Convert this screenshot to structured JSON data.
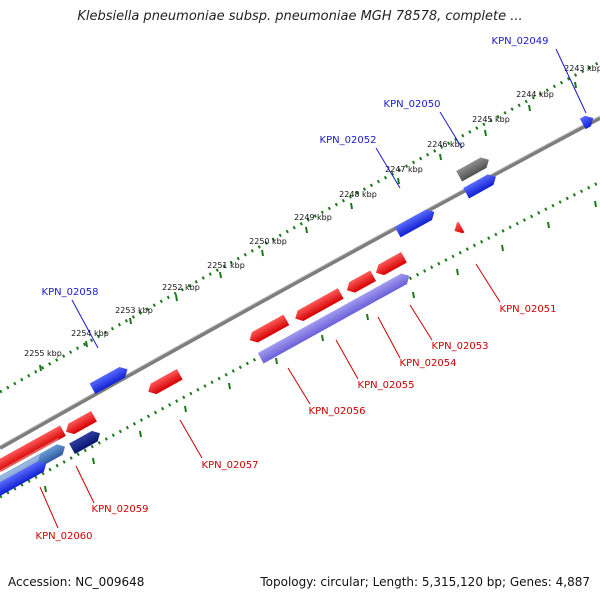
{
  "title": "Klebsiella pneumoniae subsp. pneumoniae MGH 78578, complete ...",
  "footer": {
    "accession": "Accession: NC_009648",
    "summary": "Topology: circular; Length: 5,315,120 bp; Genes: 4,887"
  },
  "ticks": [
    {
      "label": "2243 kbp"
    },
    {
      "label": "2244 kbp"
    },
    {
      "label": "2245 kbp"
    },
    {
      "label": "2246 kbp"
    },
    {
      "label": "2247 kbp"
    },
    {
      "label": "2248 kbp"
    },
    {
      "label": "2249 kbp"
    },
    {
      "label": "2250 kbp"
    },
    {
      "label": "2251 kbp"
    },
    {
      "label": "2252 kbp"
    },
    {
      "label": "2253 kbp"
    },
    {
      "label": "2254 kbp"
    },
    {
      "label": "2255 kbp"
    }
  ],
  "genes": [
    {
      "id": "KPN_02049",
      "strand": "forward"
    },
    {
      "id": "KPN_02050",
      "strand": "forward"
    },
    {
      "id": "KPN_02052",
      "strand": "forward"
    },
    {
      "id": "KPN_02058",
      "strand": "forward"
    },
    {
      "id": "KPN_02051",
      "strand": "reverse"
    },
    {
      "id": "KPN_02053",
      "strand": "reverse"
    },
    {
      "id": "KPN_02054",
      "strand": "reverse"
    },
    {
      "id": "KPN_02055",
      "strand": "reverse"
    },
    {
      "id": "KPN_02056",
      "strand": "reverse"
    },
    {
      "id": "KPN_02057",
      "strand": "reverse"
    },
    {
      "id": "KPN_02059",
      "strand": "reverse"
    },
    {
      "id": "KPN_02060",
      "strand": "reverse"
    }
  ],
  "colors": {
    "forward_gene": "#1f2fe0",
    "reverse_gene": "#ee1111",
    "forward_label": "#1a1acc",
    "reverse_label": "#cc0000",
    "tick": "#1c7a1c",
    "backbone": "#8a8a8a"
  }
}
